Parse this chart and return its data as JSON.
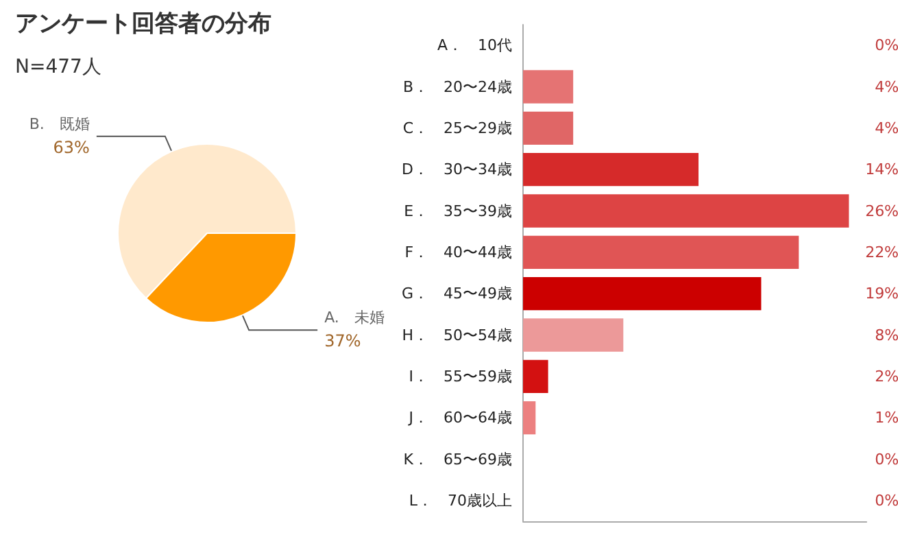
{
  "chart_data": [
    {
      "type": "pie",
      "title": "アンケート回答者の分布",
      "subtitle": "N=477人",
      "categories": [
        "A.　未婚",
        "B.　既婚"
      ],
      "values": [
        37,
        63
      ],
      "colors": [
        "#ff9900",
        "#ffe9cc"
      ],
      "value_labels": [
        "37%",
        "63%"
      ],
      "legend": false
    },
    {
      "type": "bar",
      "orientation": "horizontal",
      "categories": [
        "A．　10代",
        "B．　20〜24歳",
        "C．　25〜29歳",
        "D．　30〜34歳",
        "E．　35〜39歳",
        "F．　40〜44歳",
        "G．　45〜49歳",
        "H．　50〜54歳",
        "I．　55〜59歳",
        "J．　60〜64歳",
        "K．　65〜69歳",
        "L．　70歳以上"
      ],
      "values": [
        0,
        4,
        4,
        14,
        26,
        22,
        19,
        8,
        2,
        1,
        0,
        0
      ],
      "colors": [
        "#e57373",
        "#e57373",
        "#e06666",
        "#d62a2a",
        "#dd4444",
        "#e05555",
        "#cc0000",
        "#ec9999",
        "#d31111",
        "#ec8080",
        "#e57373",
        "#e57373"
      ],
      "value_labels": [
        "0%",
        "4%",
        "4%",
        "14%",
        "26%",
        "22%",
        "19%",
        "8%",
        "2%",
        "1%",
        "0%",
        "0%"
      ],
      "xlim": [
        0,
        27.4
      ],
      "tick_labels": "y",
      "grid": false,
      "legend": false
    }
  ]
}
